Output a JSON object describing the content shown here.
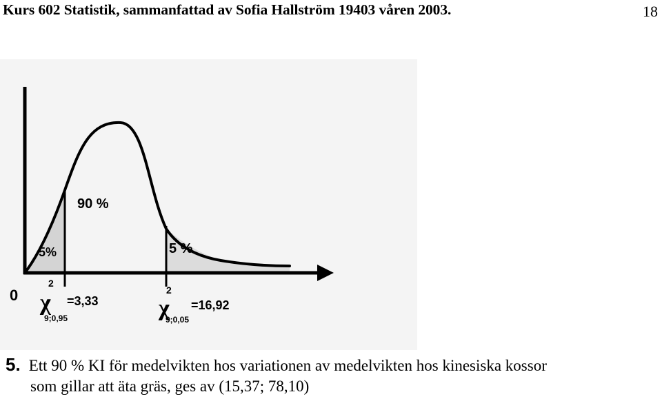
{
  "header": {
    "title": "Kurs 602 Statistik, sammanfattad av Sofia Hallström 19403 våren 2003.",
    "page_number": "18"
  },
  "figure": {
    "origin_label": "0",
    "center_label": "90 %",
    "left_tail_label": "5%",
    "right_tail_label": "5 %",
    "left_critical": {
      "symbol": "χ",
      "superscript": "2",
      "subscript": "9;0,95",
      "value_text": "=3,33"
    },
    "right_critical": {
      "symbol": "χ",
      "superscript": "2",
      "subscript": "9;0,05",
      "value_text": "=16,92"
    }
  },
  "question": {
    "number": "5.",
    "line1": "Ett 90 % KI för medelvikten hos variationen av medelvikten hos kinesiska kossor",
    "line2": "som gillar att äta gräs, ges av (15,37; 78,10)"
  }
}
